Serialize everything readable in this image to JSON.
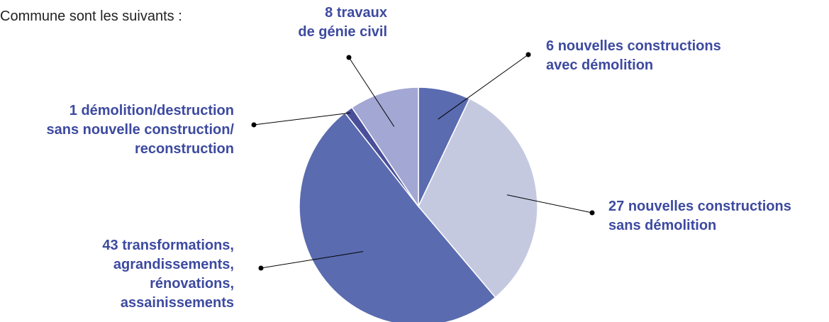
{
  "intro": "Commune sont les suivants :",
  "chart_data": {
    "type": "pie",
    "categories": [
      "nouvelles constructions\navec démolition",
      "nouvelles constructions\nsans démolition",
      "transformations,\nagrandissements,\nrénovations,\nassainissements",
      "démolition/destruction\nsans nouvelle construction/\nreconstruction",
      "travaux\nde génie civil"
    ],
    "values": [
      6,
      27,
      43,
      1,
      8
    ],
    "colors": [
      "#5a6bb0",
      "#c5c9e0",
      "#5a6bb0",
      "#4a4f9a",
      "#a3a7d4"
    ]
  }
}
